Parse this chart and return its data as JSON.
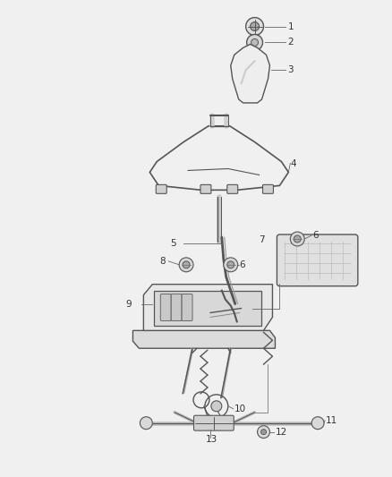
{
  "background_color": "#f0f0f0",
  "line_color": "#555555",
  "label_color": "#333333",
  "fig_width": 4.38,
  "fig_height": 5.33,
  "dpi": 100
}
